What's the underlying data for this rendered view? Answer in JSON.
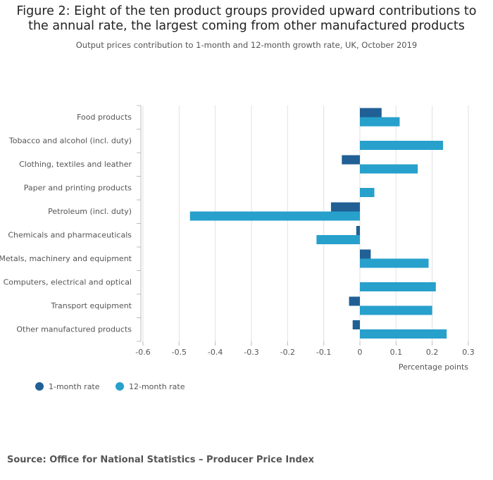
{
  "chart_data": {
    "type": "hbar",
    "title": "Figure 2: Eight of the ten product groups provided upward contributions to the annual rate, the largest coming from other manufactured products",
    "subtitle": "Output prices contribution to 1-month and 12-month growth rate, UK, October 2019",
    "categories": [
      "Food products",
      "Tobacco and alcohol (incl. duty)",
      "Clothing, textiles and leather",
      "Paper and printing products",
      "Petroleum (incl. duty)",
      "Chemicals and pharmaceuticals",
      "Metals, machinery and equipment",
      "Computers, electrical and optical",
      "Transport equipment",
      "Other manufactured products"
    ],
    "series": [
      {
        "name": "1-month rate",
        "color": "#206095",
        "values": [
          0.06,
          0,
          -0.05,
          0,
          -0.08,
          -0.01,
          0.03,
          0,
          -0.03,
          -0.02
        ]
      },
      {
        "name": "12-month rate",
        "color": "#27a0cc",
        "values": [
          0.11,
          0.23,
          0.16,
          0.04,
          -0.47,
          -0.12,
          0.19,
          0.21,
          0.2,
          0.24
        ]
      }
    ],
    "xlim": [
      -0.6,
      0.3
    ],
    "xticks": [
      -0.6,
      -0.5,
      -0.4,
      -0.3,
      -0.2,
      -0.1,
      0,
      0.1,
      0.2,
      0.3
    ],
    "xlabel": "Percentage points",
    "grid": true,
    "source": "Source: Office for National Statistics – Producer Price Index"
  }
}
